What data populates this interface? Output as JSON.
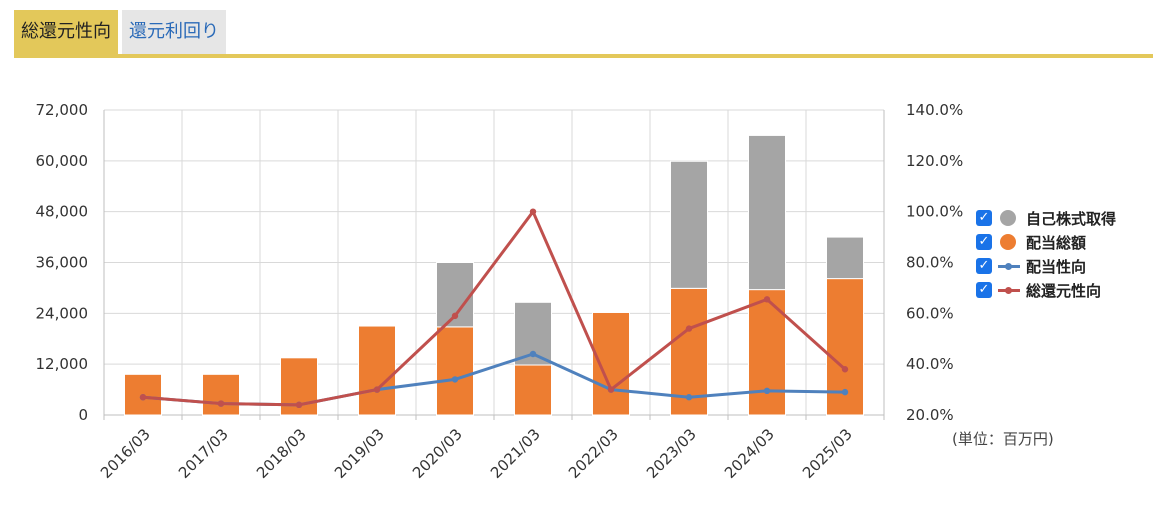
{
  "tabs": [
    {
      "label": "総還元性向",
      "active": true
    },
    {
      "label": "還元利回り",
      "active": false
    }
  ],
  "unit_label": "(単位：百万円)",
  "legend": [
    {
      "label": "自己株式取得",
      "color": "#a5a5a5",
      "kind": "dot",
      "checked": true
    },
    {
      "label": "配当総額",
      "color": "#ed7d31",
      "kind": "dot",
      "checked": true
    },
    {
      "label": "配当性向",
      "color": "#4f81bd",
      "kind": "line",
      "checked": true
    },
    {
      "label": "総還元性向",
      "color": "#c0504d",
      "kind": "line",
      "checked": true
    }
  ],
  "chart_data": {
    "type": "bar",
    "stacked": true,
    "categories": [
      "2016/03",
      "2017/03",
      "2018/03",
      "2019/03",
      "2020/03",
      "2021/03",
      "2022/03",
      "2023/03",
      "2024/03",
      "2025/03"
    ],
    "y_left": {
      "min": 0,
      "max": 72000,
      "ticks": [
        "0",
        "12,000",
        "24,000",
        "36,000",
        "48,000",
        "60,000",
        "72,000"
      ]
    },
    "y_right": {
      "min": 20,
      "max": 140,
      "ticks": [
        "20.0%",
        "40.0%",
        "60.0%",
        "80.0%",
        "100.0%",
        "120.0%",
        "140.0%"
      ]
    },
    "series": [
      {
        "name": "配当総額",
        "type": "bar",
        "axis": "left",
        "color": "#ed7d31",
        "values": [
          9600,
          9600,
          13500,
          21000,
          20800,
          11800,
          24200,
          29900,
          29600,
          32200
        ]
      },
      {
        "name": "自己株式取得",
        "type": "bar",
        "axis": "left",
        "color": "#a5a5a5",
        "values": [
          0,
          0,
          0,
          0,
          15200,
          14800,
          0,
          30000,
          36400,
          9800
        ]
      },
      {
        "name": "配当性向",
        "type": "line",
        "axis": "right",
        "color": "#4f81bd",
        "values": [
          27.0,
          24.5,
          24.0,
          30.0,
          34.0,
          44.0,
          30.0,
          27.0,
          29.5,
          29.0
        ]
      },
      {
        "name": "総還元性向",
        "type": "line",
        "axis": "right",
        "color": "#c0504d",
        "values": [
          27.0,
          24.5,
          24.0,
          30.0,
          59.0,
          100.0,
          30.0,
          54.0,
          65.5,
          38.0
        ]
      }
    ],
    "grid": true,
    "legend_position": "right"
  }
}
